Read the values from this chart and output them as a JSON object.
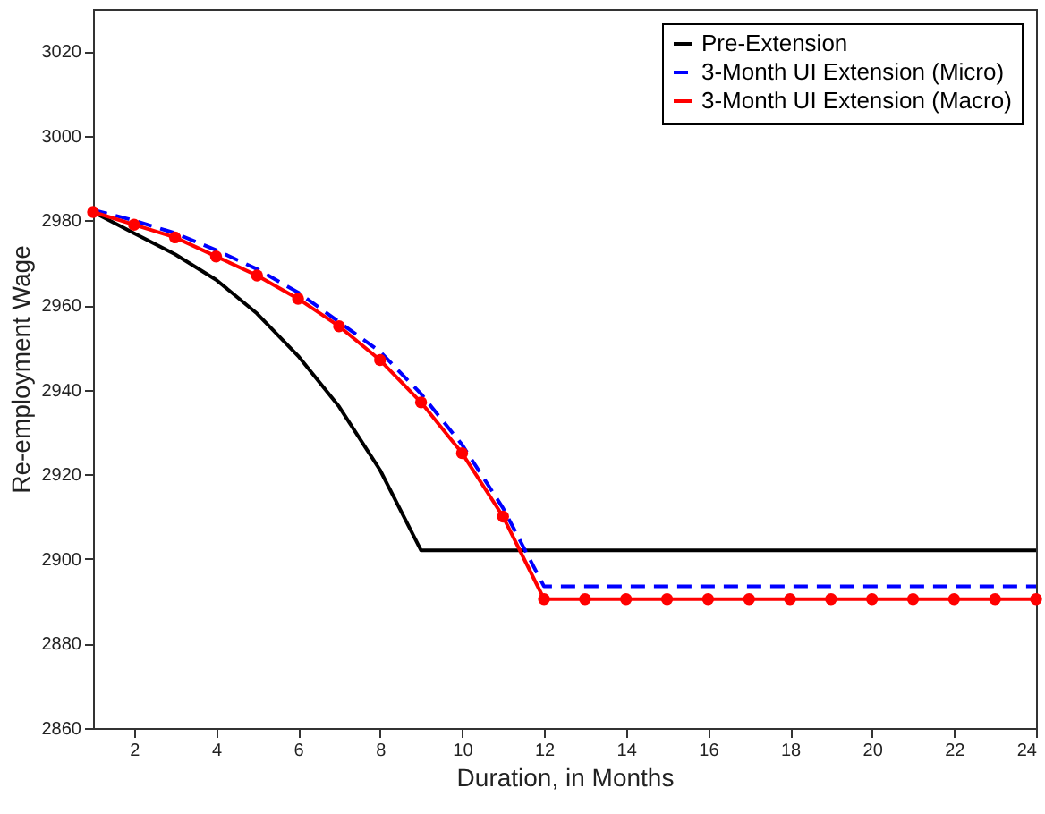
{
  "chart_data": {
    "type": "line",
    "xlabel": "Duration, in Months",
    "ylabel": "Re-employment Wage",
    "x": [
      1,
      2,
      3,
      4,
      5,
      6,
      7,
      8,
      9,
      10,
      11,
      12,
      13,
      14,
      15,
      16,
      17,
      18,
      19,
      20,
      21,
      22,
      23,
      24
    ],
    "xlim": [
      1,
      24
    ],
    "xticks": [
      2,
      4,
      6,
      8,
      10,
      12,
      14,
      16,
      18,
      20,
      22,
      24
    ],
    "ylim": [
      2860,
      3030
    ],
    "yticks": [
      2860,
      2880,
      2900,
      2920,
      2940,
      2960,
      2980,
      3000,
      3020
    ],
    "grid": false,
    "legend": "top right",
    "series": [
      {
        "name": "Pre-Extension",
        "color": "#000000",
        "line_style": "solid",
        "marker": "none",
        "values": [
          2982,
          2977,
          2972,
          2966,
          2958,
          2948,
          2936,
          2921,
          2902,
          2902,
          2902,
          2902,
          2902,
          2902,
          2902,
          2902,
          2902,
          2902,
          2902,
          2902,
          2902,
          2902,
          2902,
          2902
        ]
      },
      {
        "name": "3-Month UI Extension (Micro)",
        "color": "#0000ff",
        "line_style": "dashed",
        "marker": "none",
        "values": [
          2982.5,
          2980,
          2977,
          2973,
          2968.5,
          2963,
          2956,
          2949,
          2939,
          2927,
          2912,
          2893.5,
          2893.5,
          2893.5,
          2893.5,
          2893.5,
          2893.5,
          2893.5,
          2893.5,
          2893.5,
          2893.5,
          2893.5,
          2893.5,
          2893.5
        ]
      },
      {
        "name": "3-Month UI Extension (Macro)",
        "color": "#ff0000",
        "line_style": "solid",
        "marker": "circle",
        "values": [
          2982,
          2979,
          2976,
          2971.5,
          2967,
          2961.5,
          2955,
          2947,
          2937,
          2925,
          2910,
          2890.5,
          2890.5,
          2890.5,
          2890.5,
          2890.5,
          2890.5,
          2890.5,
          2890.5,
          2890.5,
          2890.5,
          2890.5,
          2890.5,
          2890.5
        ]
      }
    ]
  }
}
